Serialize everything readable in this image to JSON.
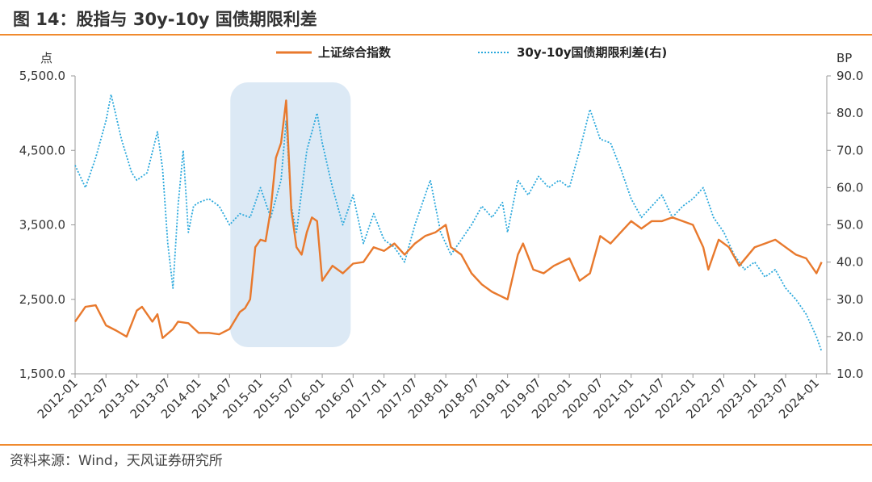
{
  "title": "图 14：股指与 30y-10y 国债期限利差",
  "source": "资料来源：Wind，天风证券研究所",
  "colors": {
    "accent": "#f08a2e",
    "index": "#e8792d",
    "spread": "#2aa8dc",
    "highlight": "#dce9f5"
  },
  "chart_data": {
    "type": "line",
    "title": "",
    "y_left_unit": "点",
    "y_right_unit": "BP",
    "y_left_lim": [
      1500,
      5500
    ],
    "y_right_lim": [
      10,
      90
    ],
    "y_left_ticks": [
      "1,500.0",
      "2,500.0",
      "3,500.0",
      "4,500.0",
      "5,500.0"
    ],
    "y_right_ticks": [
      "10.0",
      "20.0",
      "30.0",
      "40.0",
      "50.0",
      "60.0",
      "70.0",
      "80.0",
      "90.0"
    ],
    "x_ticks": [
      "2012-01",
      "2012-07",
      "2013-01",
      "2013-07",
      "2014-01",
      "2014-07",
      "2015-01",
      "2015-07",
      "2016-01",
      "2016-07",
      "2017-01",
      "2017-07",
      "2018-01",
      "2018-07",
      "2019-01",
      "2019-07",
      "2020-01",
      "2020-07",
      "2021-01",
      "2021-07",
      "2022-01",
      "2022-07",
      "2023-01",
      "2023-07",
      "2024-01"
    ],
    "highlight_period": [
      "2014-07",
      "2016-07"
    ],
    "legend_position": "top",
    "series": [
      {
        "name": "上证综合指数",
        "axis": "left",
        "style": "solid",
        "points": [
          [
            "2012-01",
            2200
          ],
          [
            "2012-03",
            2400
          ],
          [
            "2012-05",
            2420
          ],
          [
            "2012-07",
            2150
          ],
          [
            "2012-09",
            2080
          ],
          [
            "2012-11",
            2000
          ],
          [
            "2013-01",
            2350
          ],
          [
            "2013-02",
            2400
          ],
          [
            "2013-04",
            2200
          ],
          [
            "2013-05",
            2300
          ],
          [
            "2013-06",
            1980
          ],
          [
            "2013-08",
            2100
          ],
          [
            "2013-09",
            2200
          ],
          [
            "2013-11",
            2180
          ],
          [
            "2014-01",
            2050
          ],
          [
            "2014-03",
            2050
          ],
          [
            "2014-05",
            2030
          ],
          [
            "2014-07",
            2100
          ],
          [
            "2014-09",
            2330
          ],
          [
            "2014-10",
            2380
          ],
          [
            "2014-11",
            2500
          ],
          [
            "2014-12",
            3200
          ],
          [
            "2015-01",
            3300
          ],
          [
            "2015-02",
            3280
          ],
          [
            "2015-03",
            3700
          ],
          [
            "2015-04",
            4400
          ],
          [
            "2015-05",
            4600
          ],
          [
            "2015-06",
            5170
          ],
          [
            "2015-07",
            3700
          ],
          [
            "2015-08",
            3200
          ],
          [
            "2015-09",
            3100
          ],
          [
            "2015-10",
            3400
          ],
          [
            "2015-11",
            3600
          ],
          [
            "2015-12",
            3550
          ],
          [
            "2016-01",
            2750
          ],
          [
            "2016-03",
            2950
          ],
          [
            "2016-05",
            2850
          ],
          [
            "2016-07",
            2980
          ],
          [
            "2016-09",
            3000
          ],
          [
            "2016-11",
            3200
          ],
          [
            "2017-01",
            3150
          ],
          [
            "2017-03",
            3250
          ],
          [
            "2017-05",
            3100
          ],
          [
            "2017-07",
            3250
          ],
          [
            "2017-09",
            3350
          ],
          [
            "2017-11",
            3400
          ],
          [
            "2018-01",
            3500
          ],
          [
            "2018-02",
            3200
          ],
          [
            "2018-04",
            3100
          ],
          [
            "2018-06",
            2850
          ],
          [
            "2018-08",
            2700
          ],
          [
            "2018-10",
            2600
          ],
          [
            "2019-01",
            2500
          ],
          [
            "2019-03",
            3100
          ],
          [
            "2019-04",
            3250
          ],
          [
            "2019-06",
            2900
          ],
          [
            "2019-08",
            2850
          ],
          [
            "2019-10",
            2950
          ],
          [
            "2020-01",
            3050
          ],
          [
            "2020-03",
            2750
          ],
          [
            "2020-05",
            2850
          ],
          [
            "2020-07",
            3350
          ],
          [
            "2020-09",
            3250
          ],
          [
            "2020-11",
            3400
          ],
          [
            "2021-01",
            3550
          ],
          [
            "2021-03",
            3450
          ],
          [
            "2021-05",
            3550
          ],
          [
            "2021-07",
            3550
          ],
          [
            "2021-09",
            3600
          ],
          [
            "2021-11",
            3550
          ],
          [
            "2022-01",
            3500
          ],
          [
            "2022-03",
            3200
          ],
          [
            "2022-04",
            2900
          ],
          [
            "2022-06",
            3300
          ],
          [
            "2022-08",
            3200
          ],
          [
            "2022-10",
            2950
          ],
          [
            "2023-01",
            3200
          ],
          [
            "2023-03",
            3250
          ],
          [
            "2023-05",
            3300
          ],
          [
            "2023-07",
            3200
          ],
          [
            "2023-09",
            3100
          ],
          [
            "2023-11",
            3050
          ],
          [
            "2024-01",
            2850
          ],
          [
            "2024-02",
            3000
          ]
        ]
      },
      {
        "name": "30y-10y国债期限利差(右)",
        "axis": "right",
        "style": "dotted",
        "points": [
          [
            "2012-01",
            66
          ],
          [
            "2012-03",
            60
          ],
          [
            "2012-05",
            68
          ],
          [
            "2012-07",
            78
          ],
          [
            "2012-08",
            85
          ],
          [
            "2012-10",
            73
          ],
          [
            "2012-12",
            64
          ],
          [
            "2013-01",
            62
          ],
          [
            "2013-03",
            64
          ],
          [
            "2013-05",
            75
          ],
          [
            "2013-06",
            65
          ],
          [
            "2013-07",
            45
          ],
          [
            "2013-08",
            33
          ],
          [
            "2013-09",
            55
          ],
          [
            "2013-10",
            70
          ],
          [
            "2013-11",
            48
          ],
          [
            "2013-12",
            55
          ],
          [
            "2014-01",
            56
          ],
          [
            "2014-03",
            57
          ],
          [
            "2014-05",
            55
          ],
          [
            "2014-07",
            50
          ],
          [
            "2014-09",
            53
          ],
          [
            "2014-11",
            52
          ],
          [
            "2015-01",
            60
          ],
          [
            "2015-03",
            52
          ],
          [
            "2015-05",
            62
          ],
          [
            "2015-06",
            78
          ],
          [
            "2015-07",
            55
          ],
          [
            "2015-08",
            48
          ],
          [
            "2015-10",
            70
          ],
          [
            "2015-12",
            80
          ],
          [
            "2016-01",
            72
          ],
          [
            "2016-03",
            60
          ],
          [
            "2016-05",
            50
          ],
          [
            "2016-07",
            58
          ],
          [
            "2016-09",
            45
          ],
          [
            "2016-11",
            53
          ],
          [
            "2017-01",
            46
          ],
          [
            "2017-03",
            44
          ],
          [
            "2017-05",
            40
          ],
          [
            "2017-07",
            50
          ],
          [
            "2017-09",
            58
          ],
          [
            "2017-10",
            62
          ],
          [
            "2017-12",
            48
          ],
          [
            "2018-02",
            42
          ],
          [
            "2018-04",
            46
          ],
          [
            "2018-06",
            50
          ],
          [
            "2018-08",
            55
          ],
          [
            "2018-10",
            52
          ],
          [
            "2018-12",
            56
          ],
          [
            "2019-01",
            48
          ],
          [
            "2019-03",
            62
          ],
          [
            "2019-05",
            58
          ],
          [
            "2019-07",
            63
          ],
          [
            "2019-09",
            60
          ],
          [
            "2019-11",
            62
          ],
          [
            "2020-01",
            60
          ],
          [
            "2020-03",
            70
          ],
          [
            "2020-05",
            81
          ],
          [
            "2020-07",
            73
          ],
          [
            "2020-09",
            72
          ],
          [
            "2020-11",
            65
          ],
          [
            "2021-01",
            57
          ],
          [
            "2021-03",
            52
          ],
          [
            "2021-05",
            55
          ],
          [
            "2021-07",
            58
          ],
          [
            "2021-09",
            52
          ],
          [
            "2021-11",
            55
          ],
          [
            "2022-01",
            57
          ],
          [
            "2022-03",
            60
          ],
          [
            "2022-05",
            52
          ],
          [
            "2022-07",
            48
          ],
          [
            "2022-09",
            42
          ],
          [
            "2022-11",
            38
          ],
          [
            "2023-01",
            40
          ],
          [
            "2023-03",
            36
          ],
          [
            "2023-05",
            38
          ],
          [
            "2023-07",
            33
          ],
          [
            "2023-09",
            30
          ],
          [
            "2023-11",
            26
          ],
          [
            "2024-01",
            20
          ],
          [
            "2024-02",
            16
          ]
        ]
      }
    ]
  }
}
